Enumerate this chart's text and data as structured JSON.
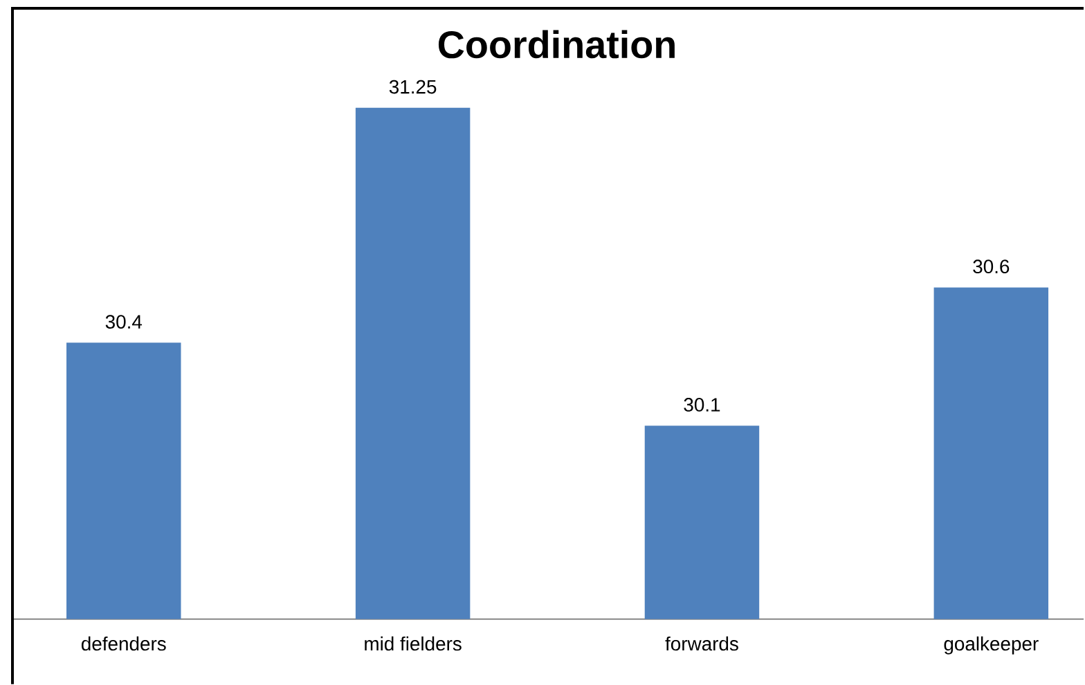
{
  "chart_data": {
    "type": "bar",
    "title": "Coordination",
    "categories": [
      "defenders",
      "mid fielders",
      "forwards",
      "goalkeeper"
    ],
    "values": [
      30.4,
      31.25,
      30.1,
      30.6
    ],
    "color": "#4f81bd",
    "ylim": [
      29.4,
      31.6
    ],
    "data_labels": true,
    "tick_labels": "x"
  }
}
